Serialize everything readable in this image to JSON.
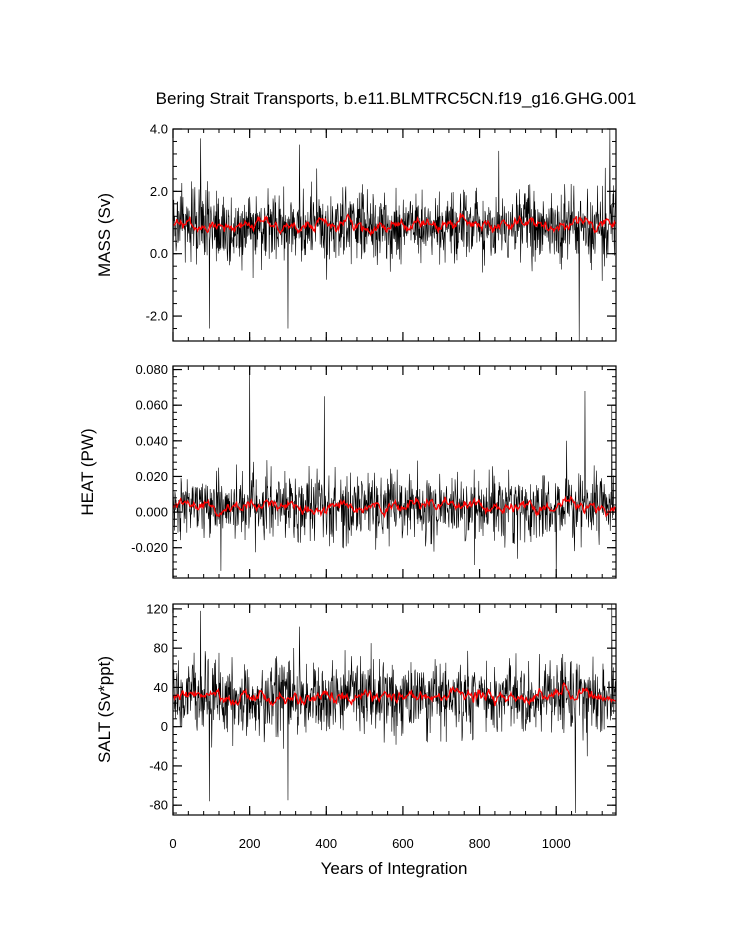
{
  "chart_data": {
    "type": "line",
    "title": "Bering Strait Transports, b.e11.BLMTRC5CN.f19_g16.GHG.001",
    "xlabel": "Years of Integration",
    "xlim": [
      0,
      1156
    ],
    "xticks": [
      0,
      200,
      400,
      600,
      800,
      1000
    ],
    "xtick_labels": [
      "0",
      "200",
      "400",
      "600",
      "800",
      "1000"
    ],
    "series_colors": {
      "raw": "#000000",
      "smoothed": "#ff0000"
    },
    "panels": [
      {
        "ylabel": "MASS (Sv)",
        "ylim": [
          -2.8,
          4.0
        ],
        "yticks": [
          -2.0,
          0.0,
          2.0,
          4.0
        ],
        "ytick_labels": [
          "-2.0",
          "0.0",
          "2.0",
          "4.0"
        ],
        "raw": {
          "mean": 0.9,
          "spread": 0.6,
          "min": -2.8,
          "max": 4.0
        },
        "smoothed": {
          "mean": 0.9,
          "amplitude": 0.12
        },
        "spikes": [
          [
            72,
            3.7
          ],
          [
            330,
            3.5
          ],
          [
            850,
            3.3
          ],
          [
            1140,
            4.0
          ],
          [
            95,
            -2.4
          ],
          [
            300,
            -2.4
          ],
          [
            1060,
            -2.8
          ]
        ]
      },
      {
        "ylabel": "HEAT (PW)",
        "ylim": [
          -0.037,
          0.082
        ],
        "yticks": [
          -0.02,
          0.0,
          0.02,
          0.04,
          0.06,
          0.08
        ],
        "ytick_labels": [
          "-0.020",
          "0.000",
          "0.020",
          "0.040",
          "0.060",
          "0.080"
        ],
        "raw": {
          "mean": 0.003,
          "spread": 0.009,
          "min": -0.037,
          "max": 0.082
        },
        "smoothed": {
          "mean": 0.003,
          "amplitude": 0.002
        },
        "spikes": [
          [
            200,
            0.082
          ],
          [
            395,
            0.065
          ],
          [
            1075,
            0.068
          ],
          [
            1145,
            0.06
          ],
          [
            125,
            -0.033
          ],
          [
            1000,
            -0.037
          ]
        ]
      },
      {
        "ylabel": "SALT (Sv*ppt)",
        "ylim": [
          -90,
          125
        ],
        "yticks": [
          -80,
          -40,
          0,
          40,
          80,
          120
        ],
        "ytick_labels": [
          "-80",
          "-40",
          "0",
          "40",
          "80",
          "120"
        ],
        "raw": {
          "mean": 30,
          "spread": 19,
          "min": -90,
          "max": 125
        },
        "smoothed": {
          "mean": 30,
          "amplitude": 4
        },
        "spikes": [
          [
            72,
            118
          ],
          [
            330,
            102
          ],
          [
            1145,
            125
          ],
          [
            95,
            -76
          ],
          [
            300,
            -75
          ],
          [
            1050,
            -88
          ]
        ]
      }
    ]
  }
}
